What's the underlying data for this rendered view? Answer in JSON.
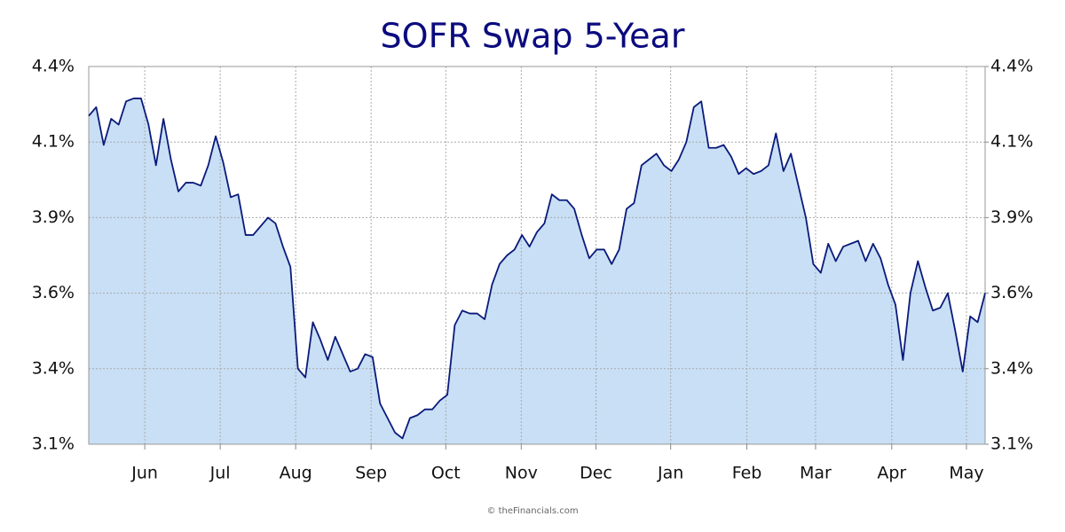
{
  "chart_data": {
    "type": "area",
    "title": "SOFR Swap 5-Year",
    "source": "© theFinancials.com",
    "color": "#0a1a7a",
    "fill": "#c8dff5",
    "grid": true,
    "values": [
      4.23,
      4.26,
      4.13,
      4.22,
      4.2,
      4.28,
      4.29,
      4.29,
      4.2,
      4.06,
      4.22,
      4.08,
      3.97,
      4.0,
      4.0,
      3.99,
      4.06,
      4.16,
      4.07,
      3.95,
      3.96,
      3.82,
      3.82,
      3.85,
      3.88,
      3.86,
      3.78,
      3.71,
      3.36,
      3.33,
      3.52,
      3.46,
      3.39,
      3.47,
      3.41,
      3.35,
      3.36,
      3.41,
      3.4,
      3.24,
      3.19,
      3.14,
      3.12,
      3.19,
      3.2,
      3.22,
      3.22,
      3.25,
      3.27,
      3.51,
      3.56,
      3.55,
      3.55,
      3.53,
      3.65,
      3.72,
      3.75,
      3.77,
      3.82,
      3.78,
      3.83,
      3.86,
      3.96,
      3.94,
      3.94,
      3.91,
      3.82,
      3.74,
      3.77,
      3.77,
      3.72,
      3.77,
      3.91,
      3.93,
      4.06,
      4.08,
      4.1,
      4.06,
      4.04,
      4.08,
      4.14,
      4.26,
      4.28,
      4.12,
      4.12,
      4.13,
      4.09,
      4.03,
      4.05,
      4.03,
      4.04,
      4.06,
      4.17,
      4.04,
      4.1,
      3.99,
      3.88,
      3.72,
      3.69,
      3.79,
      3.73,
      3.78,
      3.79,
      3.8,
      3.73,
      3.79,
      3.74,
      3.65,
      3.58,
      3.39,
      3.62,
      3.73,
      3.64,
      3.56,
      3.57,
      3.62,
      3.49,
      3.35,
      3.54,
      3.52,
      3.62
    ],
    "xlim": [
      0,
      120
    ],
    "xticks": [
      {
        "value": 7.5,
        "label": "Jun"
      },
      {
        "value": 17.6,
        "label": "Jul"
      },
      {
        "value": 27.7,
        "label": "Aug"
      },
      {
        "value": 37.8,
        "label": "Sep"
      },
      {
        "value": 47.8,
        "label": "Oct"
      },
      {
        "value": 57.9,
        "label": "Nov"
      },
      {
        "value": 67.9,
        "label": "Dec"
      },
      {
        "value": 77.9,
        "label": "Jan"
      },
      {
        "value": 88.1,
        "label": "Feb"
      },
      {
        "value": 97.3,
        "label": "Mar"
      },
      {
        "value": 107.5,
        "label": "Apr"
      },
      {
        "value": 117.5,
        "label": "May"
      }
    ],
    "ylim": [
      3.1,
      4.4
    ],
    "yticks": [
      {
        "value": 3.1,
        "label": "3.1%"
      },
      {
        "value": 3.36,
        "label": "3.4%"
      },
      {
        "value": 3.62,
        "label": "3.6%"
      },
      {
        "value": 3.88,
        "label": "3.9%"
      },
      {
        "value": 4.14,
        "label": "4.1%"
      },
      {
        "value": 4.4,
        "label": "4.4%"
      }
    ],
    "y2lim": [
      3.1,
      4.4
    ],
    "y2ticks": [
      {
        "value": 3.1,
        "label": "3.1%"
      },
      {
        "value": 3.36,
        "label": "3.4%"
      },
      {
        "value": 3.62,
        "label": "3.6%"
      },
      {
        "value": 3.88,
        "label": "3.9%"
      },
      {
        "value": 4.14,
        "label": "4.1%"
      },
      {
        "value": 4.4,
        "label": "4.4%"
      }
    ]
  }
}
